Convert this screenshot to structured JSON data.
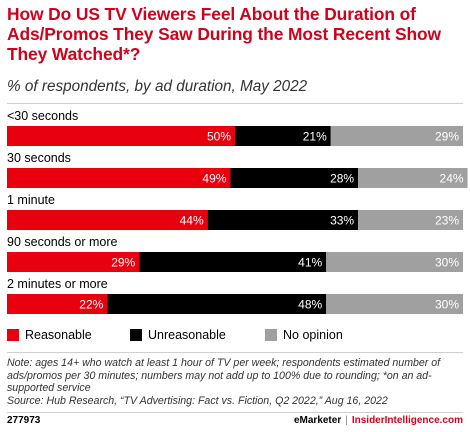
{
  "title": "How Do US TV Viewers Feel About the Duration of Ads/Promos They Saw During the Most Recent Show They Watched*?",
  "subtitle": "% of respondents, by ad duration, May 2022",
  "note": "Note: ages 14+ who watch at least 1 hour of TV per week; respondents estimated number of ads/promos per 30 minutes; numbers may not add up to 100% due to rounding; *on an ad-supported service",
  "source": "Source: Hub Research, “TV Advertising: Fact vs. Fiction, Q2 2022,” Aug 16, 2022",
  "footer": {
    "code": "277973",
    "brand": "eMarketer",
    "separator": "|",
    "site": "InsiderIntelligence.com"
  },
  "colors": {
    "title": "#d0021b",
    "Reasonable": "#e8000f",
    "Unreasonable": "#000000",
    "No opinion": "#a0a0a0"
  },
  "chart_data": {
    "type": "bar",
    "orientation": "horizontal",
    "stacked": true,
    "unit": "%",
    "categories": [
      "<30 seconds",
      "30 seconds",
      "1 minute",
      "90 seconds or more",
      "2 minutes or more"
    ],
    "series": [
      {
        "name": "Reasonable",
        "values": [
          50,
          49,
          44,
          29,
          22
        ]
      },
      {
        "name": "Unreasonable",
        "values": [
          21,
          28,
          33,
          41,
          48
        ]
      },
      {
        "name": "No opinion",
        "values": [
          29,
          24,
          23,
          30,
          30
        ]
      }
    ],
    "xlim": [
      0,
      100
    ],
    "grid": false,
    "legend": "bottom"
  }
}
